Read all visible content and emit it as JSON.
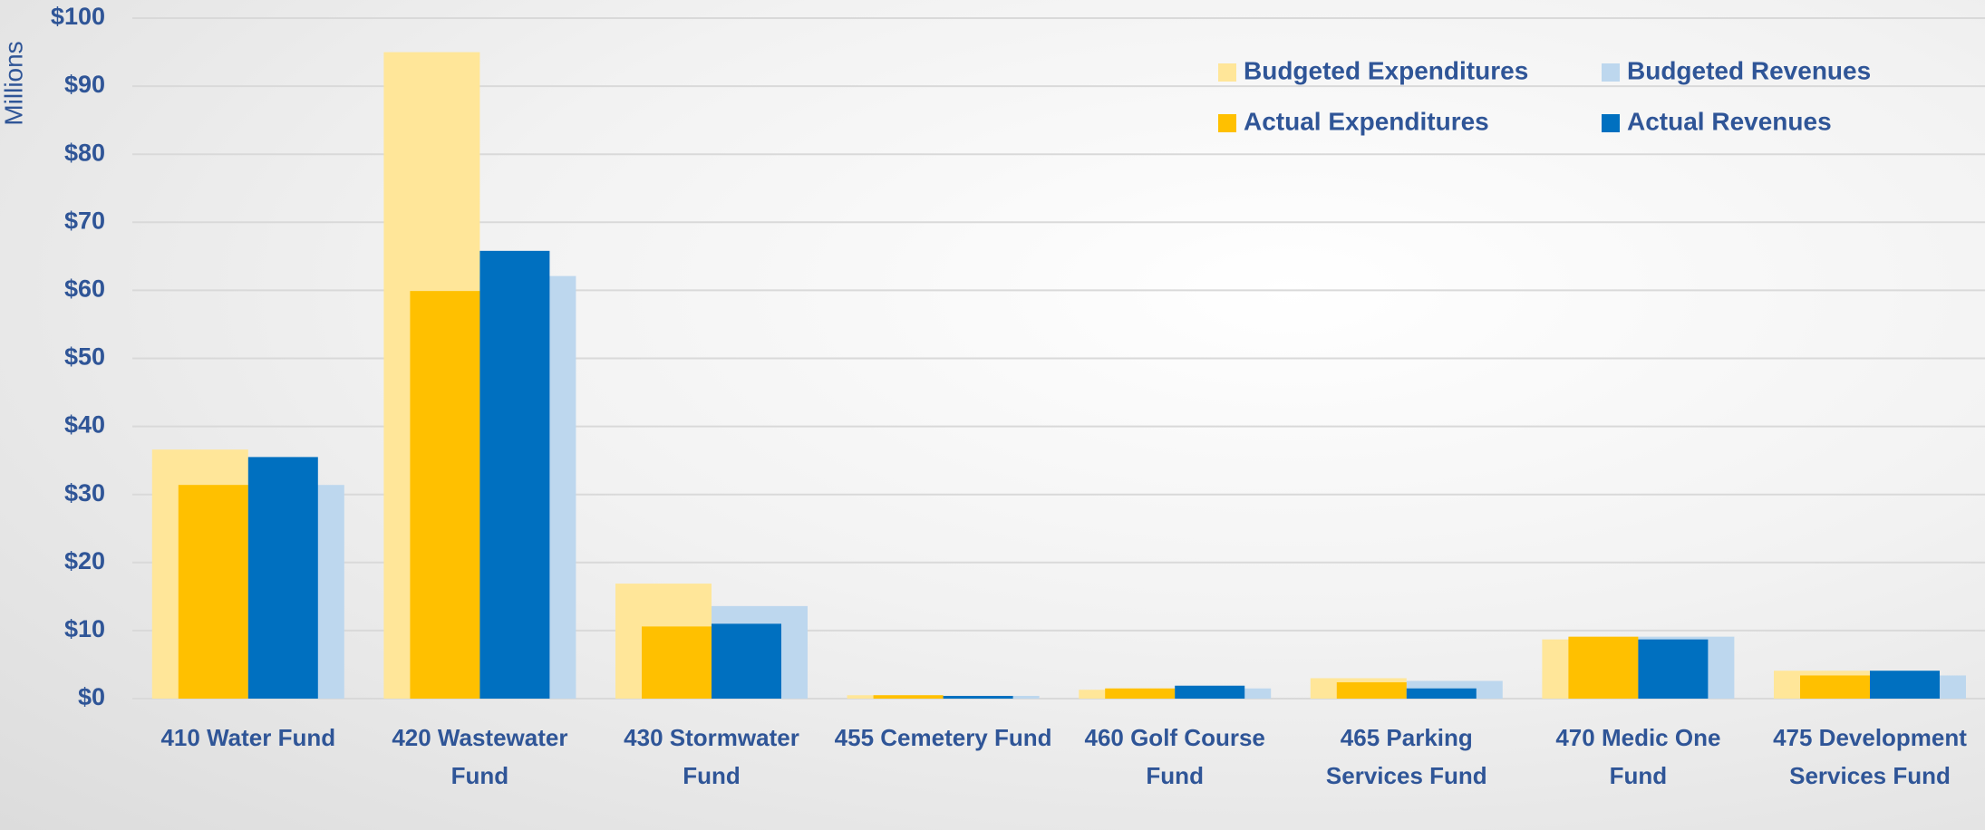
{
  "chart_data": {
    "type": "bar",
    "ylabel": "Millions",
    "categories": [
      "410 Water Fund",
      "420 Wastewater Fund",
      "430 Stormwater Fund",
      "455 Cemetery Fund",
      "460 Golf Course Fund",
      "465 Parking Services Fund",
      "470 Medic One Fund",
      "475 Development Services Fund"
    ],
    "series": [
      {
        "name": "Budgeted Expenditures",
        "color": "#ffe699",
        "values": [
          36.6,
          95,
          16.9,
          0.5,
          1.3,
          3.0,
          8.7,
          4.1
        ]
      },
      {
        "name": "Budgeted Revenues",
        "color": "#bdd7ee",
        "values": [
          31.4,
          62.1,
          13.6,
          0.4,
          1.5,
          2.6,
          9.1,
          3.4
        ]
      },
      {
        "name": "Actual Expenditures",
        "color": "#ffc000",
        "values": [
          31.4,
          59.9,
          10.6,
          0.5,
          1.5,
          2.4,
          9.1,
          3.4
        ]
      },
      {
        "name": "Actual Revenues",
        "color": "#0070c0",
        "values": [
          35.5,
          65.8,
          11,
          0.4,
          1.9,
          1.5,
          8.7,
          4.1
        ]
      }
    ],
    "ylim": [
      0,
      100
    ],
    "yticks": [
      {
        "value": 0,
        "label": "$0"
      },
      {
        "value": 10,
        "label": "$10"
      },
      {
        "value": 20,
        "label": "$20"
      },
      {
        "value": 30,
        "label": "$30"
      },
      {
        "value": 40,
        "label": "$40"
      },
      {
        "value": 50,
        "label": "$50"
      },
      {
        "value": 60,
        "label": "$60"
      },
      {
        "value": 70,
        "label": "$70"
      },
      {
        "value": 80,
        "label": "$80"
      },
      {
        "value": 90,
        "label": "$90"
      },
      {
        "value": 100,
        "label": "$100"
      }
    ],
    "grid": true,
    "legend": "top-right"
  }
}
